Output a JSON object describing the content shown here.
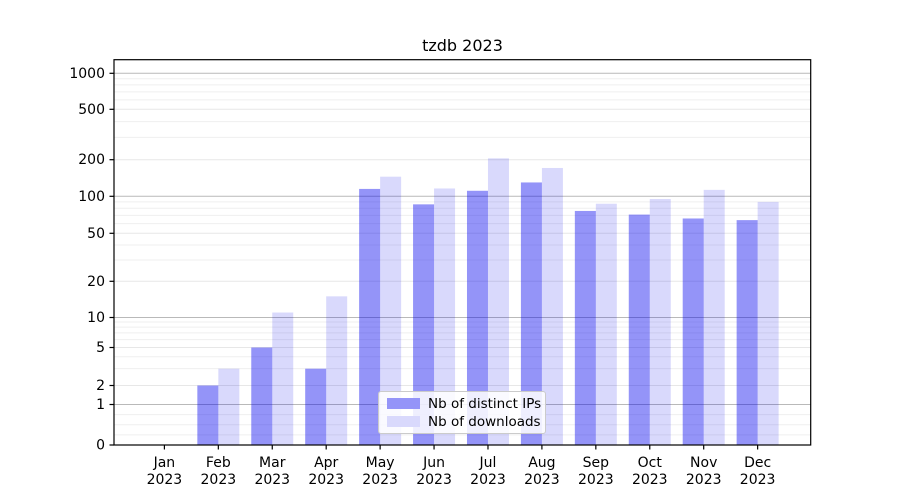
{
  "chart_data": {
    "type": "bar",
    "title": "tzdb 2023",
    "categories": [
      "Jan 2023",
      "Feb 2023",
      "Mar 2023",
      "Apr 2023",
      "May 2023",
      "Jun 2023",
      "Jul 2023",
      "Aug 2023",
      "Sep 2023",
      "Oct 2023",
      "Nov 2023",
      "Dec 2023"
    ],
    "series": [
      {
        "name": "Nb of distinct IPs",
        "values": [
          0,
          2,
          5,
          3,
          115,
          86,
          111,
          130,
          76,
          71,
          66,
          64
        ],
        "color": "#0000ee",
        "opacity": 0.42
      },
      {
        "name": "Nb of downloads",
        "values": [
          0,
          3,
          11,
          15,
          145,
          116,
          205,
          171,
          87,
          95,
          113,
          90
        ],
        "color": "#0000ee",
        "opacity": 0.15
      }
    ],
    "yscale": "asinh",
    "yticks": [
      0,
      1,
      2,
      5,
      10,
      20,
      50,
      100,
      200,
      500,
      1000
    ],
    "ylim": [
      0,
      1300
    ],
    "xlabel": "",
    "ylabel": "",
    "grid": true,
    "legend_position": "lower center"
  }
}
